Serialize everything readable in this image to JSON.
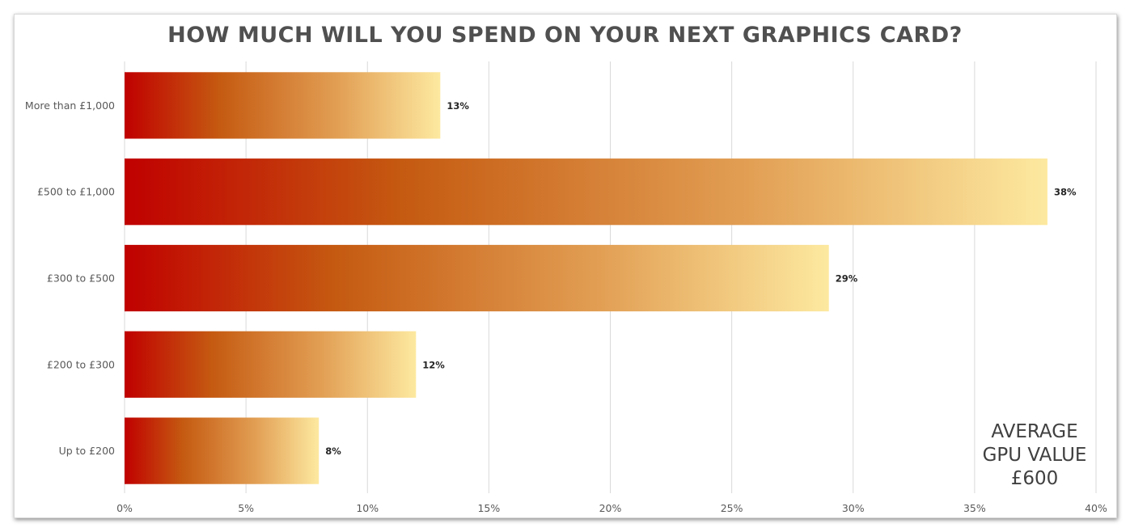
{
  "chart_data": {
    "type": "bar",
    "orientation": "horizontal",
    "title": "HOW MUCH WILL YOU SPEND ON YOUR NEXT GRAPHICS CARD?",
    "categories": [
      "More than £1,000",
      "£500 to £1,000",
      "£300 to £500",
      "£200 to £300",
      "Up to £200"
    ],
    "values": [
      13,
      38,
      29,
      12,
      8
    ],
    "value_labels": [
      "13%",
      "38%",
      "29%",
      "12%",
      "8%"
    ],
    "xlim": [
      0,
      40
    ],
    "x_ticks": [
      "0%",
      "5%",
      "10%",
      "15%",
      "20%",
      "25%",
      "30%",
      "35%",
      "40%"
    ],
    "grid": true,
    "gradient_colors": [
      "#c00000",
      "#c55a11",
      "#e2a055",
      "#fde9a0"
    ]
  },
  "annotation": {
    "line1": "AVERAGE",
    "line2": "GPU VALUE",
    "line3": "£600"
  }
}
